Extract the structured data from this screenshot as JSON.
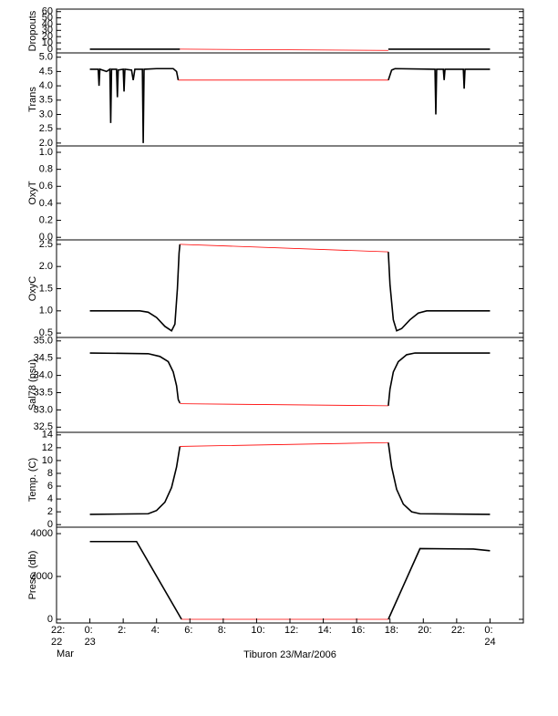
{
  "chart_data": [
    {
      "type": "line",
      "ylabel": "Dropouts",
      "xlim": [
        -2,
        26
      ],
      "ylim": [
        -6,
        64
      ],
      "yticks": [
        0,
        10,
        20,
        30,
        40,
        50,
        60
      ],
      "series": [
        {
          "color": "#000000",
          "x": [
            0,
            5.4
          ],
          "values": [
            0,
            0
          ]
        },
        {
          "color": "#000000",
          "x": [
            17.9,
            24
          ],
          "values": [
            0,
            0
          ]
        },
        {
          "color": "#ff0000",
          "x": [
            5.4,
            17.9
          ],
          "values": [
            0,
            -2
          ]
        }
      ]
    },
    {
      "type": "line",
      "ylabel": "Trans",
      "xlim": [
        -2,
        26
      ],
      "ylim": [
        1.9,
        5.15
      ],
      "yticks": [
        {
          "value": 2,
          "label": "2.0"
        },
        {
          "value": 2.5,
          "label": "2.5"
        },
        {
          "value": 3,
          "label": "3.0"
        },
        {
          "value": 3.5,
          "label": "3.5"
        },
        {
          "value": 4,
          "label": "4.0"
        },
        {
          "value": 4.5,
          "label": "4.5"
        },
        {
          "value": 5,
          "label": "5.0"
        }
      ],
      "series": [
        {
          "color": "#000000",
          "x": [
            0,
            0.5,
            0.55,
            0.6,
            1.0,
            1.2,
            1.25,
            1.3,
            1.6,
            1.65,
            1.7,
            2.0,
            2.05,
            2.1,
            2.5,
            2.6,
            2.7,
            3.15,
            3.2,
            3.25,
            4.0,
            5.0,
            5.2,
            5.3
          ],
          "values": [
            4.58,
            4.58,
            4.0,
            4.58,
            4.5,
            4.58,
            2.7,
            4.58,
            4.58,
            3.6,
            4.55,
            4.58,
            3.8,
            4.58,
            4.55,
            4.2,
            4.58,
            4.58,
            2.0,
            4.58,
            4.6,
            4.6,
            4.5,
            4.2
          ]
        },
        {
          "color": "#000000",
          "x": [
            17.9,
            18.1,
            18.3,
            20.7,
            20.75,
            20.8,
            21.2,
            21.25,
            21.3,
            22.4,
            22.45,
            22.5,
            24
          ],
          "values": [
            4.2,
            4.55,
            4.6,
            4.58,
            3.0,
            4.58,
            4.58,
            4.2,
            4.58,
            4.58,
            3.9,
            4.58,
            4.58
          ]
        },
        {
          "color": "#ff0000",
          "x": [
            5.3,
            17.9
          ],
          "values": [
            4.2,
            4.2
          ]
        }
      ]
    },
    {
      "type": "line",
      "ylabel": "OxyT",
      "xlim": [
        -2,
        26
      ],
      "ylim": [
        -0.03,
        1.075
      ],
      "yticks": [
        {
          "value": 0,
          "label": "0.0"
        },
        {
          "value": 0.2,
          "label": "0.2"
        },
        {
          "value": 0.4,
          "label": "0.4"
        },
        {
          "value": 0.6,
          "label": "0.6"
        },
        {
          "value": 0.8,
          "label": "0.8"
        },
        {
          "value": 1,
          "label": "1.0"
        }
      ],
      "series": []
    },
    {
      "type": "line",
      "ylabel": "OxyC",
      "xlim": [
        -2,
        26
      ],
      "ylim": [
        0.4,
        2.6
      ],
      "yticks": [
        {
          "value": 0.5,
          "label": "0.5"
        },
        {
          "value": 1,
          "label": "1.0"
        },
        {
          "value": 1.5,
          "label": "1.5"
        },
        {
          "value": 2,
          "label": "2.0"
        },
        {
          "value": 2.5,
          "label": "2.5"
        }
      ],
      "series": [
        {
          "color": "#000000",
          "x": [
            0,
            3.0,
            3.5,
            4.0,
            4.5,
            4.9,
            5.1,
            5.25,
            5.35,
            5.4
          ],
          "values": [
            1.0,
            1.0,
            0.97,
            0.85,
            0.65,
            0.55,
            0.7,
            1.5,
            2.3,
            2.5
          ]
        },
        {
          "color": "#000000",
          "x": [
            17.9,
            18.0,
            18.2,
            18.4,
            18.7,
            19.2,
            19.7,
            20.2,
            24
          ],
          "values": [
            2.33,
            1.6,
            0.8,
            0.55,
            0.6,
            0.8,
            0.95,
            1.0,
            1.0
          ]
        },
        {
          "color": "#ff0000",
          "x": [
            5.4,
            17.9
          ],
          "values": [
            2.5,
            2.33
          ]
        }
      ]
    },
    {
      "type": "line",
      "ylabel": "Sal78 (psu)",
      "xlim": [
        -2,
        26
      ],
      "ylim": [
        32.35,
        35.1
      ],
      "yticks": [
        {
          "value": 32.5,
          "label": "32.5"
        },
        {
          "value": 33,
          "label": "33.0"
        },
        {
          "value": 33.5,
          "label": "33.5"
        },
        {
          "value": 34,
          "label": "34.0"
        },
        {
          "value": 34.5,
          "label": "34.5"
        },
        {
          "value": 35,
          "label": "35.0"
        }
      ],
      "series": [
        {
          "color": "#000000",
          "x": [
            0,
            3.5,
            4.2,
            4.7,
            5.0,
            5.2,
            5.3,
            5.4
          ],
          "values": [
            34.65,
            34.63,
            34.55,
            34.4,
            34.1,
            33.7,
            33.3,
            33.2
          ]
        },
        {
          "color": "#000000",
          "x": [
            17.9,
            18.0,
            18.2,
            18.5,
            19.0,
            19.5,
            24
          ],
          "values": [
            33.12,
            33.6,
            34.1,
            34.4,
            34.6,
            34.65,
            34.65
          ]
        },
        {
          "color": "#ff0000",
          "x": [
            5.4,
            17.9
          ],
          "values": [
            33.18,
            33.12
          ]
        }
      ]
    },
    {
      "type": "line",
      "ylabel": "Temp. (C)",
      "xlim": [
        -2,
        26
      ],
      "ylim": [
        -0.4,
        14.4
      ],
      "yticks": [
        0,
        2,
        4,
        6,
        8,
        10,
        12,
        14
      ],
      "series": [
        {
          "color": "#000000",
          "x": [
            0,
            3.5,
            4.0,
            4.5,
            4.9,
            5.2,
            5.4
          ],
          "values": [
            1.6,
            1.7,
            2.2,
            3.5,
            5.8,
            9,
            12.2
          ]
        },
        {
          "color": "#000000",
          "x": [
            17.9,
            18.1,
            18.4,
            18.8,
            19.3,
            19.8,
            24
          ],
          "values": [
            12.8,
            9,
            5.5,
            3.2,
            2,
            1.7,
            1.6
          ]
        },
        {
          "color": "#ff0000",
          "x": [
            5.4,
            17.9
          ],
          "values": [
            12.2,
            12.8
          ]
        }
      ]
    },
    {
      "type": "line",
      "ylabel": "Press. (db)",
      "xlabel": "Tiburon 23/Mar/2006",
      "xlim": [
        -2,
        26
      ],
      "ylim": [
        -170,
        4300
      ],
      "yticks": [
        0,
        2000,
        4000
      ],
      "xticks": [
        {
          "value": -2,
          "label": [
            "22:",
            "22",
            "Mar"
          ]
        },
        {
          "value": 0,
          "label": [
            "0:",
            "23"
          ]
        },
        {
          "value": 2,
          "label": [
            "2:"
          ]
        },
        {
          "value": 4,
          "label": [
            "4:"
          ]
        },
        {
          "value": 6,
          "label": [
            "6:"
          ]
        },
        {
          "value": 8,
          "label": [
            "8:"
          ]
        },
        {
          "value": 10,
          "label": [
            "10:"
          ]
        },
        {
          "value": 12,
          "label": [
            "12:"
          ]
        },
        {
          "value": 14,
          "label": [
            "14:"
          ]
        },
        {
          "value": 16,
          "label": [
            "16:"
          ]
        },
        {
          "value": 18,
          "label": [
            "18:"
          ]
        },
        {
          "value": 20,
          "label": [
            "20:"
          ]
        },
        {
          "value": 22,
          "label": [
            "22:"
          ]
        },
        {
          "value": 24,
          "label": [
            "0:",
            "24"
          ]
        }
      ],
      "series": [
        {
          "color": "#000000",
          "x": [
            0,
            2.8,
            5.5
          ],
          "values": [
            3630,
            3630,
            0
          ]
        },
        {
          "color": "#000000",
          "x": [
            17.9,
            19.8,
            23,
            24
          ],
          "values": [
            0,
            3300,
            3280,
            3200
          ]
        },
        {
          "color": "#ff0000",
          "x": [
            5.5,
            17.9
          ],
          "values": [
            0,
            0
          ]
        }
      ]
    }
  ]
}
